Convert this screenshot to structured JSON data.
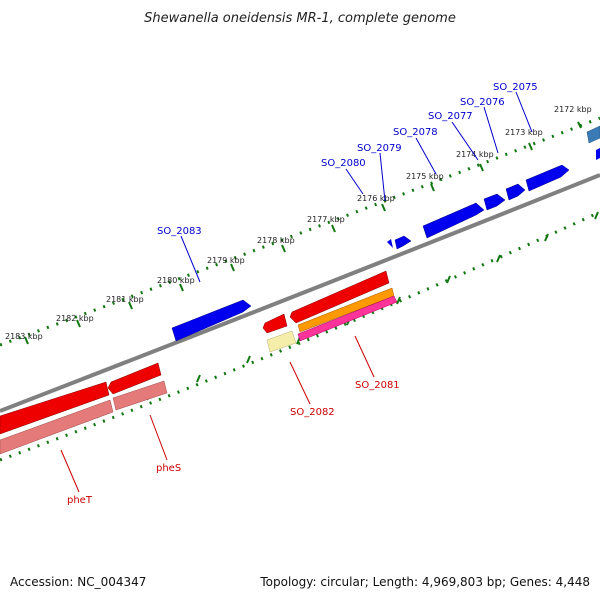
{
  "title": "Shewanella oneidensis MR-1, complete genome",
  "footer": {
    "accession": "Accession: NC_004347",
    "summary": "Topology: circular; Length: 4,969,803 bp; Genes: 4,448"
  },
  "colors": {
    "forward_gene": "#0000ee",
    "forward_gene_light": "#3b7bb5",
    "reverse_gene": "#ee0000",
    "reverse_gene_pale": "#e47a7a",
    "orange_feature": "#ff9900",
    "magenta_feature": "#ff3399",
    "pale_feature": "#f4eeaa",
    "backbone": "#808080",
    "tick": "#117711",
    "forward_label": "#0000cc",
    "reverse_label": "#cc0000"
  },
  "ticks": [
    "2172 kbp",
    "2173 kbp",
    "2174 kbp",
    "2175 kbp",
    "2176 kbp",
    "2177 kbp",
    "2178 kbp",
    "2179 kbp",
    "2180 kbp",
    "2181 kbp",
    "2182 kbp",
    "2183 kbp"
  ],
  "forward_labels": [
    "SO_2075",
    "SO_2076",
    "SO_2077",
    "SO_2078",
    "SO_2079",
    "SO_2080",
    "SO_2083"
  ],
  "reverse_labels": [
    "SO_2081",
    "SO_2082",
    "pheS",
    "pheT"
  ]
}
